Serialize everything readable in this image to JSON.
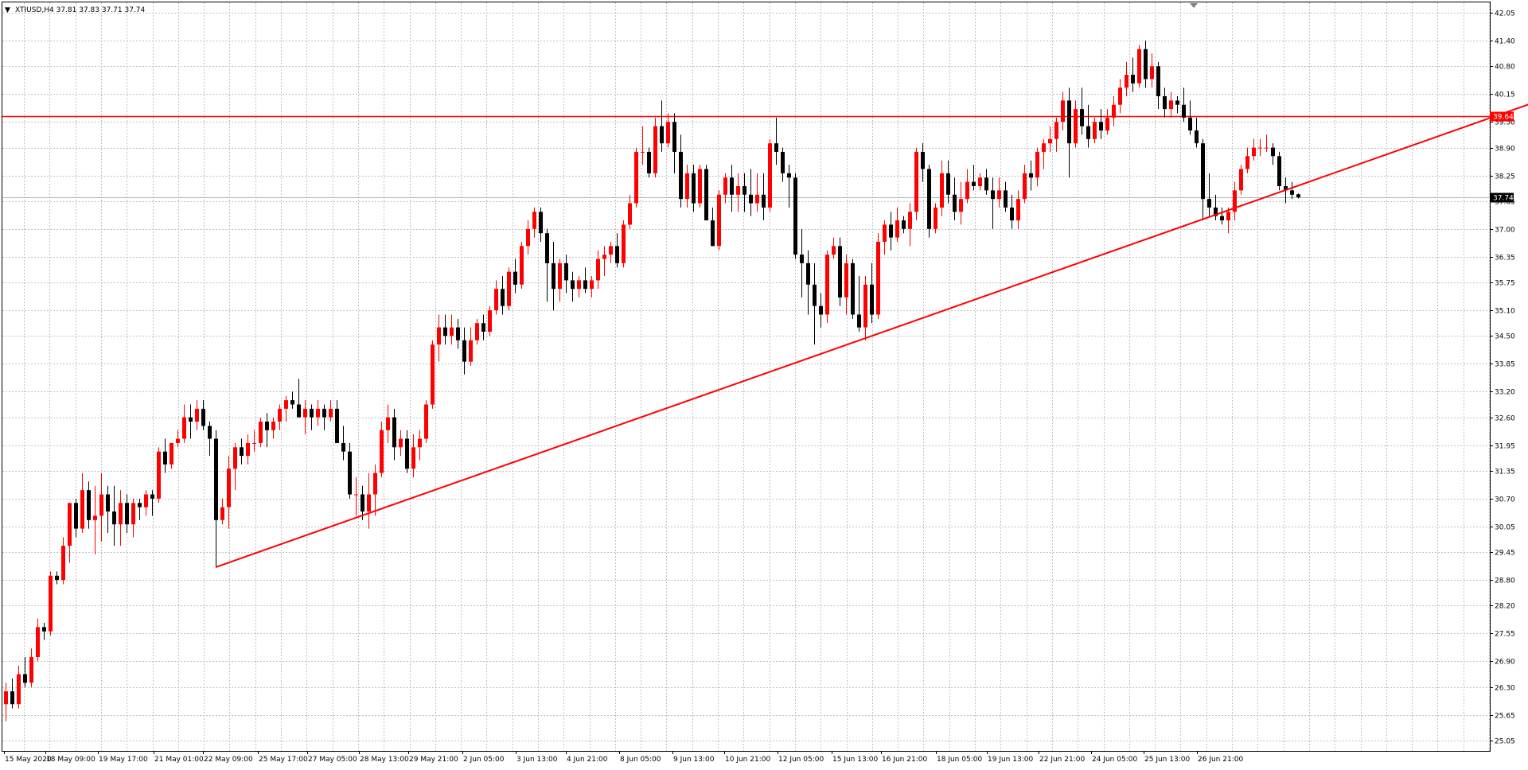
{
  "window": {
    "header_arrow": "▼",
    "header_text": "XTIUSD,H4  37.81 37.83 37.71 37.74"
  },
  "colors": {
    "bull": "#ff0000",
    "bear": "#000000",
    "grid": "#c0c0c0",
    "trendline": "#ff0000",
    "bid_line": "#a8b8c8"
  },
  "chart_data": {
    "type": "candlestick",
    "symbol": "XTIUSD",
    "timeframe": "H4",
    "ohlc_header": {
      "open": 37.81,
      "high": 37.83,
      "low": 37.71,
      "close": 37.74
    },
    "y_range": [
      25.05,
      42.05
    ],
    "y_ticks": [
      "42.05",
      "41.40",
      "40.80",
      "40.15",
      "39.50",
      "38.90",
      "38.25",
      "37.65",
      "37.00",
      "36.35",
      "35.75",
      "35.10",
      "34.50",
      "33.85",
      "33.20",
      "32.60",
      "31.95",
      "31.35",
      "30.70",
      "30.05",
      "29.45",
      "28.80",
      "28.20",
      "27.55",
      "26.90",
      "26.30",
      "25.65",
      "25.05"
    ],
    "x_labels": [
      "15 May 2020",
      "18 May 09:00",
      "19 May 17:00",
      "21 May 01:00",
      "22 May 09:00",
      "25 May 17:00",
      "27 May 05:00",
      "28 May 13:00",
      "29 May 21:00",
      "2 Jun 05:00",
      "3 Jun 13:00",
      "4 Jun 21:00",
      "8 Jun 05:00",
      "9 Jun 13:00",
      "10 Jun 21:00",
      "12 Jun 05:00",
      "15 Jun 13:00",
      "16 Jun 21:00",
      "18 Jun 05:00",
      "19 Jun 13:00",
      "22 Jun 21:00",
      "24 Jun 05:00",
      "25 Jun 13:00",
      "26 Jun 21:00"
    ],
    "horizontal_line": {
      "price": 39.64,
      "label": "39.64"
    },
    "bid_line": {
      "price": 37.74,
      "label": "37.74"
    },
    "trendline": {
      "from_index": 33,
      "from_price": 29.1,
      "to_index": 252,
      "to_price": 40.5
    },
    "candles": [
      [
        25.9,
        26.4,
        25.5,
        26.2
      ],
      [
        26.2,
        26.5,
        25.8,
        25.9
      ],
      [
        25.9,
        26.8,
        25.8,
        26.6
      ],
      [
        26.6,
        27.0,
        26.3,
        26.4
      ],
      [
        26.4,
        27.2,
        26.3,
        27.0
      ],
      [
        27.0,
        27.9,
        26.9,
        27.7
      ],
      [
        27.7,
        27.8,
        27.4,
        27.6
      ],
      [
        27.6,
        29.0,
        27.5,
        28.9
      ],
      [
        28.9,
        29.0,
        28.7,
        28.8
      ],
      [
        28.8,
        29.8,
        28.7,
        29.6
      ],
      [
        29.6,
        30.6,
        29.2,
        30.6
      ],
      [
        30.6,
        30.7,
        29.8,
        30.0
      ],
      [
        30.0,
        31.3,
        29.9,
        30.9
      ],
      [
        30.9,
        31.1,
        30.0,
        30.2
      ],
      [
        30.2,
        31.0,
        29.4,
        30.3
      ],
      [
        30.3,
        31.3,
        29.7,
        30.8
      ],
      [
        30.8,
        31.0,
        29.9,
        30.4
      ],
      [
        30.4,
        31.0,
        29.6,
        30.1
      ],
      [
        30.1,
        30.9,
        29.6,
        30.6
      ],
      [
        30.6,
        30.8,
        29.9,
        30.1
      ],
      [
        30.1,
        30.7,
        29.8,
        30.6
      ],
      [
        30.6,
        30.7,
        30.2,
        30.5
      ],
      [
        30.5,
        30.9,
        30.3,
        30.8
      ],
      [
        30.8,
        30.9,
        30.3,
        30.7
      ],
      [
        30.7,
        31.9,
        30.6,
        31.8
      ],
      [
        31.8,
        32.1,
        31.3,
        31.5
      ],
      [
        31.5,
        32.0,
        31.4,
        32.0
      ],
      [
        32.0,
        32.3,
        31.9,
        32.1
      ],
      [
        32.1,
        32.9,
        32.0,
        32.6
      ],
      [
        32.6,
        32.9,
        32.1,
        32.5
      ],
      [
        32.5,
        33.0,
        32.3,
        32.8
      ],
      [
        32.8,
        33.0,
        32.3,
        32.4
      ],
      [
        32.4,
        32.5,
        31.7,
        32.1
      ],
      [
        32.1,
        32.3,
        29.1,
        30.2
      ],
      [
        30.2,
        30.7,
        30.1,
        30.5
      ],
      [
        30.5,
        31.7,
        30.0,
        31.4
      ],
      [
        31.4,
        32.0,
        30.9,
        31.9
      ],
      [
        31.9,
        32.1,
        31.5,
        31.7
      ],
      [
        31.7,
        32.2,
        31.5,
        32.0
      ],
      [
        32.0,
        32.3,
        31.8,
        32.0
      ],
      [
        32.0,
        32.6,
        31.9,
        32.5
      ],
      [
        32.5,
        32.7,
        31.9,
        32.3
      ],
      [
        32.3,
        32.6,
        32.1,
        32.5
      ],
      [
        32.5,
        32.9,
        32.3,
        32.8
      ],
      [
        32.8,
        33.1,
        32.5,
        33.0
      ],
      [
        33.0,
        33.2,
        32.8,
        32.9
      ],
      [
        32.9,
        33.5,
        32.7,
        32.6
      ],
      [
        32.6,
        33.0,
        32.2,
        32.8
      ],
      [
        32.8,
        32.9,
        32.3,
        32.6
      ],
      [
        32.6,
        33.0,
        32.4,
        32.8
      ],
      [
        32.8,
        32.9,
        32.3,
        32.6
      ],
      [
        32.6,
        33.0,
        32.5,
        32.8
      ],
      [
        32.8,
        33.0,
        32.0,
        32.0
      ],
      [
        32.0,
        32.4,
        31.6,
        31.8
      ],
      [
        31.8,
        32.0,
        30.7,
        30.8
      ],
      [
        30.8,
        31.2,
        30.3,
        30.8
      ],
      [
        30.8,
        31.0,
        30.2,
        30.4
      ],
      [
        30.4,
        31.3,
        30.0,
        30.8
      ],
      [
        30.8,
        31.5,
        30.3,
        31.3
      ],
      [
        31.3,
        32.5,
        31.2,
        32.3
      ],
      [
        32.3,
        32.9,
        32.0,
        32.6
      ],
      [
        32.6,
        32.8,
        31.6,
        31.9
      ],
      [
        31.9,
        32.3,
        31.7,
        32.1
      ],
      [
        32.1,
        32.3,
        31.3,
        31.4
      ],
      [
        31.4,
        32.2,
        31.2,
        31.9
      ],
      [
        31.9,
        32.3,
        31.6,
        32.1
      ],
      [
        32.1,
        33.0,
        32.0,
        32.9
      ],
      [
        32.9,
        34.4,
        32.8,
        34.3
      ],
      [
        34.3,
        35.0,
        33.9,
        34.7
      ],
      [
        34.7,
        35.0,
        34.3,
        34.5
      ],
      [
        34.5,
        35.0,
        34.3,
        34.7
      ],
      [
        34.7,
        34.9,
        34.2,
        34.4
      ],
      [
        34.4,
        34.7,
        33.6,
        33.9
      ],
      [
        33.9,
        34.7,
        33.8,
        34.4
      ],
      [
        34.4,
        34.9,
        34.3,
        34.8
      ],
      [
        34.8,
        35.0,
        34.4,
        34.6
      ],
      [
        34.6,
        35.2,
        34.5,
        35.1
      ],
      [
        35.1,
        35.8,
        35.0,
        35.6
      ],
      [
        35.6,
        35.9,
        35.0,
        35.2
      ],
      [
        35.2,
        36.1,
        35.1,
        36.0
      ],
      [
        36.0,
        36.3,
        35.5,
        35.7
      ],
      [
        35.7,
        36.7,
        35.6,
        36.6
      ],
      [
        36.6,
        37.2,
        36.4,
        37.0
      ],
      [
        37.0,
        37.5,
        36.8,
        37.4
      ],
      [
        37.4,
        37.5,
        36.7,
        36.9
      ],
      [
        36.9,
        37.0,
        35.3,
        36.2
      ],
      [
        36.2,
        36.7,
        35.1,
        35.6
      ],
      [
        35.6,
        36.3,
        35.3,
        36.2
      ],
      [
        36.2,
        36.4,
        35.5,
        35.8
      ],
      [
        35.8,
        36.0,
        35.3,
        35.6
      ],
      [
        35.6,
        35.9,
        35.4,
        35.8
      ],
      [
        35.8,
        36.1,
        35.5,
        35.6
      ],
      [
        35.6,
        35.9,
        35.4,
        35.8
      ],
      [
        35.8,
        36.5,
        35.6,
        36.3
      ],
      [
        36.3,
        36.6,
        35.9,
        36.4
      ],
      [
        36.4,
        36.7,
        36.2,
        36.6
      ],
      [
        36.6,
        36.9,
        36.1,
        36.2
      ],
      [
        36.2,
        37.2,
        36.1,
        37.1
      ],
      [
        37.1,
        37.8,
        37.0,
        37.6
      ],
      [
        37.6,
        38.9,
        37.5,
        38.8
      ],
      [
        38.8,
        39.4,
        38.5,
        38.8
      ],
      [
        38.8,
        38.9,
        38.2,
        38.3
      ],
      [
        38.3,
        39.6,
        38.2,
        39.4
      ],
      [
        39.4,
        40.0,
        38.8,
        39.0
      ],
      [
        39.0,
        39.7,
        38.9,
        39.5
      ],
      [
        39.5,
        39.7,
        38.3,
        38.8
      ],
      [
        38.8,
        39.2,
        37.5,
        37.7
      ],
      [
        37.7,
        38.5,
        37.5,
        38.3
      ],
      [
        38.3,
        38.5,
        37.4,
        37.6
      ],
      [
        37.6,
        38.5,
        37.5,
        38.4
      ],
      [
        38.4,
        38.5,
        37.2,
        37.2
      ],
      [
        37.2,
        37.5,
        36.6,
        36.6
      ],
      [
        36.6,
        37.9,
        36.5,
        37.8
      ],
      [
        37.8,
        38.3,
        37.6,
        38.2
      ],
      [
        38.2,
        38.5,
        37.4,
        37.8
      ],
      [
        37.8,
        38.3,
        37.4,
        38.0
      ],
      [
        38.0,
        38.3,
        37.4,
        37.8
      ],
      [
        37.8,
        38.4,
        37.3,
        37.6
      ],
      [
        37.6,
        38.3,
        37.4,
        37.8
      ],
      [
        37.8,
        38.3,
        37.2,
        37.5
      ],
      [
        37.5,
        39.1,
        37.4,
        39.0
      ],
      [
        39.0,
        39.6,
        38.5,
        38.8
      ],
      [
        38.8,
        38.9,
        38.1,
        38.3
      ],
      [
        38.3,
        38.5,
        37.5,
        38.2
      ],
      [
        38.2,
        38.3,
        36.3,
        36.4
      ],
      [
        36.4,
        37.0,
        35.4,
        36.2
      ],
      [
        36.2,
        36.5,
        35.0,
        35.7
      ],
      [
        35.7,
        36.2,
        34.3,
        35.2
      ],
      [
        35.2,
        35.5,
        34.7,
        35.0
      ],
      [
        35.0,
        36.5,
        34.8,
        36.4
      ],
      [
        36.4,
        36.8,
        36.3,
        36.6
      ],
      [
        36.6,
        36.8,
        35.2,
        35.4
      ],
      [
        35.4,
        36.4,
        35.0,
        36.2
      ],
      [
        36.2,
        36.3,
        34.9,
        35.0
      ],
      [
        35.0,
        35.9,
        34.6,
        34.7
      ],
      [
        34.7,
        35.9,
        34.4,
        35.7
      ],
      [
        35.7,
        36.2,
        34.8,
        35.0
      ],
      [
        35.0,
        36.9,
        34.9,
        36.7
      ],
      [
        36.7,
        37.2,
        36.4,
        37.1
      ],
      [
        37.1,
        37.4,
        36.5,
        36.8
      ],
      [
        36.8,
        37.5,
        36.7,
        37.2
      ],
      [
        37.2,
        37.3,
        36.9,
        37.0
      ],
      [
        37.0,
        37.6,
        36.6,
        37.4
      ],
      [
        37.4,
        38.9,
        37.2,
        38.8
      ],
      [
        38.8,
        39.0,
        38.1,
        38.4
      ],
      [
        38.4,
        38.5,
        36.8,
        37.0
      ],
      [
        37.0,
        37.6,
        36.9,
        37.5
      ],
      [
        37.5,
        38.6,
        37.3,
        38.3
      ],
      [
        38.3,
        38.6,
        37.6,
        37.8
      ],
      [
        37.8,
        38.2,
        37.2,
        37.4
      ],
      [
        37.4,
        38.1,
        37.1,
        37.7
      ],
      [
        37.7,
        38.4,
        37.6,
        38.1
      ],
      [
        38.1,
        38.5,
        37.9,
        38.0
      ],
      [
        38.0,
        38.3,
        37.9,
        38.2
      ],
      [
        38.2,
        38.4,
        37.8,
        37.9
      ],
      [
        37.9,
        38.2,
        37.0,
        37.7
      ],
      [
        37.7,
        38.2,
        37.5,
        37.9
      ],
      [
        37.9,
        38.1,
        37.4,
        37.5
      ],
      [
        37.5,
        37.8,
        37.0,
        37.2
      ],
      [
        37.2,
        37.9,
        37.0,
        37.7
      ],
      [
        37.7,
        38.5,
        37.6,
        38.3
      ],
      [
        38.3,
        38.6,
        37.9,
        38.2
      ],
      [
        38.2,
        38.9,
        38.0,
        38.8
      ],
      [
        38.8,
        39.1,
        38.4,
        39.0
      ],
      [
        39.0,
        39.4,
        38.8,
        39.1
      ],
      [
        39.1,
        39.6,
        38.8,
        39.5
      ],
      [
        39.5,
        40.2,
        39.3,
        40.0
      ],
      [
        40.0,
        40.3,
        38.2,
        39.0
      ],
      [
        39.0,
        40.0,
        38.9,
        39.8
      ],
      [
        39.8,
        40.3,
        39.2,
        39.4
      ],
      [
        39.4,
        39.9,
        38.9,
        39.1
      ],
      [
        39.1,
        39.6,
        39.0,
        39.5
      ],
      [
        39.5,
        39.8,
        39.1,
        39.3
      ],
      [
        39.3,
        39.8,
        39.2,
        39.6
      ],
      [
        39.6,
        40.1,
        39.4,
        39.9
      ],
      [
        39.9,
        40.5,
        39.7,
        40.3
      ],
      [
        40.3,
        40.9,
        40.1,
        40.6
      ],
      [
        40.6,
        41.0,
        40.2,
        40.4
      ],
      [
        40.4,
        41.3,
        40.3,
        41.2
      ],
      [
        41.2,
        41.4,
        40.3,
        40.5
      ],
      [
        40.5,
        41.1,
        40.3,
        40.8
      ],
      [
        40.8,
        40.9,
        39.8,
        40.1
      ],
      [
        40.1,
        40.3,
        39.6,
        39.8
      ],
      [
        39.8,
        40.2,
        39.6,
        40.0
      ],
      [
        40.0,
        40.1,
        39.7,
        39.9
      ],
      [
        39.9,
        40.3,
        39.5,
        39.6
      ],
      [
        39.6,
        40.0,
        39.2,
        39.3
      ],
      [
        39.3,
        39.6,
        38.9,
        39.0
      ],
      [
        39.0,
        39.1,
        37.2,
        37.7
      ],
      [
        37.7,
        38.3,
        37.3,
        37.5
      ],
      [
        37.5,
        37.8,
        37.2,
        37.3
      ],
      [
        37.3,
        37.5,
        37.1,
        37.2
      ],
      [
        37.2,
        37.5,
        36.9,
        37.4
      ],
      [
        37.4,
        38.1,
        37.2,
        37.9
      ],
      [
        37.9,
        38.5,
        37.8,
        38.4
      ],
      [
        38.4,
        38.9,
        38.3,
        38.7
      ],
      [
        38.7,
        39.1,
        38.6,
        38.9
      ],
      [
        38.9,
        39.1,
        38.7,
        38.9
      ],
      [
        38.9,
        39.2,
        38.8,
        38.9
      ],
      [
        38.9,
        39.0,
        38.5,
        38.7
      ],
      [
        38.7,
        38.8,
        37.9,
        38.0
      ],
      [
        38.0,
        38.2,
        37.6,
        37.9
      ],
      [
        37.9,
        38.1,
        37.7,
        37.8
      ],
      [
        37.81,
        37.83,
        37.71,
        37.74
      ]
    ]
  }
}
